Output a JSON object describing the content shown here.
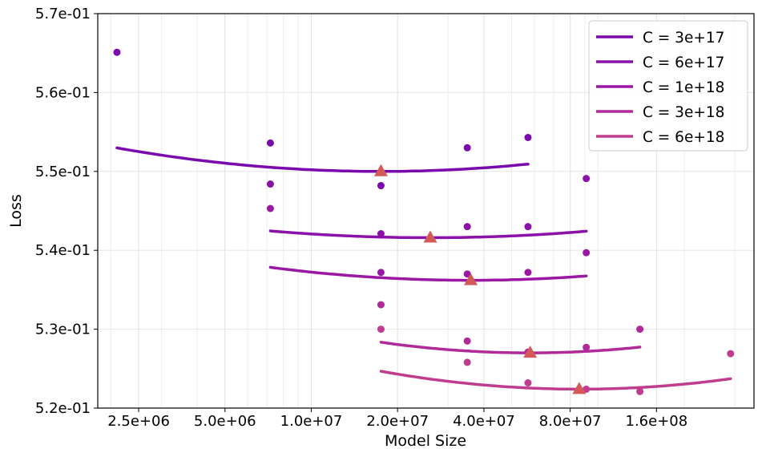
{
  "chart_data": {
    "type": "scatter",
    "title": "",
    "xlabel": "Model Size",
    "ylabel": "Loss",
    "x_scale": "log2",
    "xlim": [
      1800000,
      350000000
    ],
    "ylim": [
      0.52,
      0.57
    ],
    "grid": true,
    "legend_position": "top-right",
    "x_ticks": [
      {
        "value": 2500000,
        "label": "2.5e+06"
      },
      {
        "value": 5000000,
        "label": "5.0e+06"
      },
      {
        "value": 10000000,
        "label": "1.0e+07"
      },
      {
        "value": 20000000,
        "label": "2.0e+07"
      },
      {
        "value": 40000000,
        "label": "4.0e+07"
      },
      {
        "value": 80000000,
        "label": "8.0e+07"
      },
      {
        "value": 160000000,
        "label": "1.6e+08"
      }
    ],
    "y_ticks": [
      {
        "value": 0.52,
        "label": "5.2e-01"
      },
      {
        "value": 0.53,
        "label": "5.3e-01"
      },
      {
        "value": 0.54,
        "label": "5.4e-01"
      },
      {
        "value": 0.55,
        "label": "5.5e-01"
      },
      {
        "value": 0.56,
        "label": "5.6e-01"
      },
      {
        "value": 0.57,
        "label": "5.7e-01"
      }
    ],
    "series": [
      {
        "name": "C = 3e+17",
        "color": "#7a0aad",
        "points": [
          [
            2100000,
            0.5651
          ],
          [
            7200000,
            0.5536
          ],
          [
            17500000,
            0.5482
          ],
          [
            35000000,
            0.553
          ],
          [
            57000000,
            0.5543
          ]
        ],
        "fit_range": [
          2100000,
          57000000
        ],
        "fit_coeffs": [
          0.55,
          0.0,
          0.00352
        ],
        "optimal": [
          17500000,
          0.55
        ]
      },
      {
        "name": "C = 6e+17",
        "color": "#8b11a8",
        "points": [
          [
            7200000,
            0.5484
          ],
          [
            17500000,
            0.5421
          ],
          [
            35000000,
            0.543
          ],
          [
            57000000,
            0.543
          ],
          [
            91000000,
            0.5491
          ]
        ],
        "fit_range": [
          7200000,
          91000000
        ],
        "fit_coeffs": [
          0.5416,
          0.0,
          0.00275
        ],
        "optimal": [
          26000000,
          0.5416
        ]
      },
      {
        "name": "C = 1e+18",
        "color": "#9a18a3",
        "points": [
          [
            7200000,
            0.5453
          ],
          [
            17500000,
            0.5372
          ],
          [
            35000000,
            0.537
          ],
          [
            57000000,
            0.5372
          ],
          [
            91000000,
            0.5397
          ]
        ],
        "fit_range": [
          7200000,
          91000000
        ],
        "fit_coeffs": [
          0.5362,
          0.0,
          0.00336
        ],
        "optimal": [
          36000000,
          0.5362
        ]
      },
      {
        "name": "C = 3e+18",
        "color": "#b02a98",
        "points": [
          [
            17500000,
            0.5331
          ],
          [
            35000000,
            0.5285
          ],
          [
            57000000,
            0.5271
          ],
          [
            91000000,
            0.5277
          ],
          [
            140000000,
            0.53
          ]
        ],
        "fit_range": [
          17500000,
          140000000
        ],
        "fit_coeffs": [
          0.527,
          0.0,
          0.00498
        ],
        "optimal": [
          58000000,
          0.527
        ]
      },
      {
        "name": "C = 6e+18",
        "color": "#c03d8e",
        "points": [
          [
            17500000,
            0.53
          ],
          [
            35000000,
            0.5258
          ],
          [
            57000000,
            0.5232
          ],
          [
            91000000,
            0.5224
          ],
          [
            140000000,
            0.5221
          ],
          [
            290000000,
            0.5269
          ]
        ],
        "fit_range": [
          17500000,
          290000000
        ],
        "fit_coeffs": [
          0.5224,
          0.0,
          0.00475
        ],
        "optimal": [
          86000000,
          0.5224
        ]
      }
    ],
    "optimal_marker_color": "#d45a5a"
  }
}
